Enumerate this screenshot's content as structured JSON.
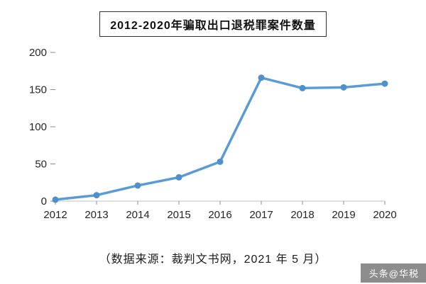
{
  "title": "2012-2020年骗取出口退税罪案件数量",
  "caption": "（数据来源：裁判文书网，2021 年 5 月）",
  "watermark": "头条@华税",
  "colors": {
    "line": "#5b9bd5",
    "marker": "#4f8fcc",
    "axis": "#bfbfbf",
    "tick": "#8c8c8c",
    "label": "#262626",
    "watermark_bg": "#8c8c8c"
  },
  "chart_data": {
    "type": "line",
    "title": "2012-2020年骗取出口退税罪案件数量",
    "categories": [
      "2012",
      "2013",
      "2014",
      "2015",
      "2016",
      "2017",
      "2018",
      "2019",
      "2020"
    ],
    "series": [
      {
        "name": "骗取出口退税罪案件数量",
        "values": [
          2,
          8,
          21,
          32,
          53,
          166,
          152,
          153,
          158
        ]
      }
    ],
    "xlabel": "",
    "ylabel": "",
    "ylim": [
      0,
      200
    ],
    "yticks": [
      0,
      50,
      100,
      150,
      200
    ],
    "grid": false,
    "legend_position": "none",
    "source_note": "数据来源：裁判文书网，2021 年 5 月"
  }
}
